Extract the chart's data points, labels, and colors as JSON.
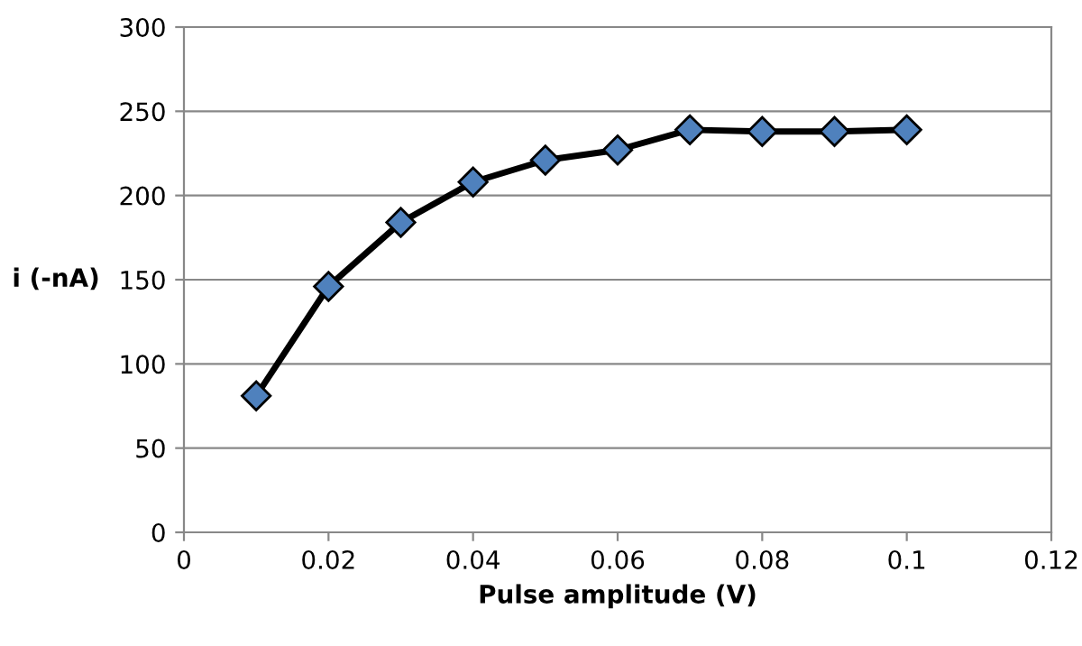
{
  "chart_data": {
    "type": "line",
    "xlabel": "Pulse amplitude (V)",
    "ylabel": "i (-nA)",
    "x": [
      0.01,
      0.02,
      0.03,
      0.04,
      0.05,
      0.06,
      0.07,
      0.08,
      0.09,
      0.1
    ],
    "series": [
      {
        "color": "#000000",
        "values": [
          81,
          146,
          184,
          208,
          221,
          227,
          239,
          238,
          238,
          239
        ]
      }
    ],
    "marker": "diamond",
    "line_style": "solid",
    "xlim": [
      0,
      0.12
    ],
    "xticks": [
      0,
      0.02,
      0.04,
      0.06,
      0.08,
      0.1,
      0.12
    ],
    "ylim": [
      0,
      300
    ],
    "yticks": [
      0,
      50,
      100,
      150,
      200,
      250,
      300
    ],
    "grid": "y"
  }
}
